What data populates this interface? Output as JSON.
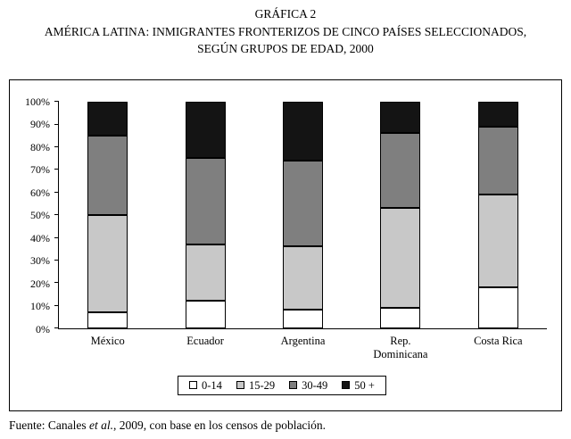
{
  "title": {
    "line1": "GRÁFICA 2",
    "line2": "AMÉRICA LATINA: INMIGRANTES FRONTERIZOS DE CINCO PAÍSES SELECCIONADOS,",
    "line3": "SEGÚN GRUPOS DE EDAD, 2000"
  },
  "chart_data": {
    "type": "bar",
    "stacked": true,
    "unit": "%",
    "title": "AMÉRICA LATINA: INMIGRANTES FRONTERIZOS DE CINCO PAÍSES SELECCIONADOS, SEGÚN GRUPOS DE EDAD, 2000",
    "categories": [
      "México",
      "Ecuador",
      "Argentina",
      "Rep.\nDominicana",
      "Costa Rica"
    ],
    "series": [
      {
        "name": "0-14",
        "color": "#ffffff",
        "values": [
          7,
          12,
          8,
          9,
          18
        ]
      },
      {
        "name": "15-29",
        "color": "#c8c8c8",
        "values": [
          43,
          25,
          28,
          44,
          41
        ]
      },
      {
        "name": "30-49",
        "color": "#7f7f7f",
        "values": [
          35,
          38,
          38,
          33,
          30
        ]
      },
      {
        "name": "50 +",
        "color": "#141414",
        "values": [
          15,
          25,
          26,
          14,
          11
        ]
      }
    ],
    "yticks": [
      "0%",
      "10%",
      "20%",
      "30%",
      "40%",
      "50%",
      "60%",
      "70%",
      "80%",
      "90%",
      "100%"
    ],
    "ylim": [
      0,
      100
    ],
    "grid": false,
    "legend_position": "bottom"
  },
  "footer": {
    "prefix": "Fuente: Canales ",
    "etal": "et al.",
    "suffix": ", 2009, con base en los censos de población."
  }
}
